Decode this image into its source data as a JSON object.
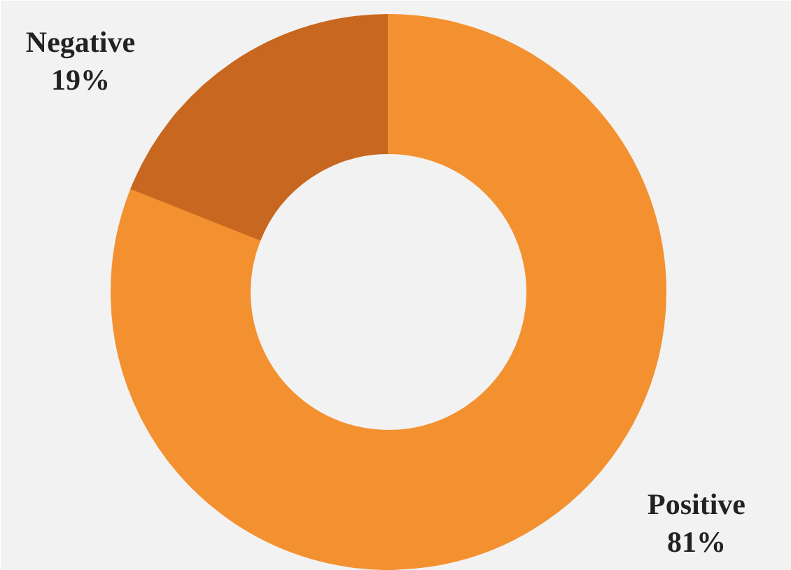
{
  "chart_data": {
    "type": "donut",
    "categories": [
      "Negative",
      "Positive"
    ],
    "values": [
      19,
      81
    ],
    "colors": [
      "#c8671f",
      "#f39131"
    ],
    "value_labels": [
      "19%",
      "81%"
    ]
  }
}
